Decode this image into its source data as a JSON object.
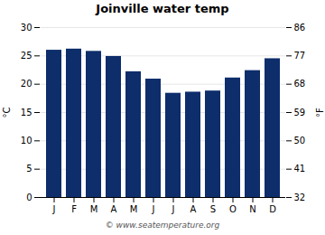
{
  "chart_data": {
    "type": "bar",
    "title": "Joinville water temp",
    "categories": [
      "J",
      "F",
      "M",
      "A",
      "M",
      "J",
      "J",
      "A",
      "S",
      "O",
      "N",
      "D"
    ],
    "values": [
      26.0,
      26.2,
      25.8,
      24.9,
      22.2,
      20.9,
      18.4,
      18.6,
      18.8,
      21.1,
      22.4,
      24.5
    ],
    "color": "#0d2d6b",
    "ylabel": "°C",
    "ylim": [
      0,
      30
    ],
    "yticks": [
      0,
      5,
      10,
      15,
      20,
      25,
      30
    ],
    "y2label": "°F",
    "y2lim": [
      32,
      86
    ],
    "y2ticks": [
      32,
      41,
      50,
      59,
      68,
      77,
      86
    ],
    "grid": true,
    "annotation": "© www.seatemperature.org"
  }
}
